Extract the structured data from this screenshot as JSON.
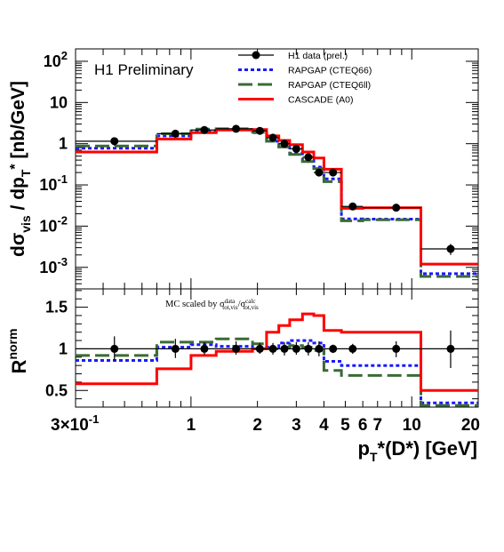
{
  "chart_data": [
    {
      "type": "line",
      "label": "H1 Preliminary",
      "ylabel": "dσ_vis / dp_T* [nb/GeV]",
      "xlabel": "",
      "xscale": "log",
      "yscale": "log",
      "xlim": [
        0.3,
        20
      ],
      "ylim": [
        0.0003,
        200
      ],
      "yticks": [
        {
          "value": 100,
          "mantissa": "10",
          "exp": "2"
        },
        {
          "value": 10,
          "mantissa": "10",
          "exp": ""
        },
        {
          "value": 1,
          "mantissa": "1",
          "exp": ""
        },
        {
          "value": 0.1,
          "mantissa": "10",
          "exp": "-1"
        },
        {
          "value": 0.01,
          "mantissa": "10",
          "exp": "-2"
        },
        {
          "value": 0.001,
          "mantissa": "10",
          "exp": "-3"
        }
      ],
      "bin_edges": [
        0.3,
        0.7,
        1.0,
        1.3,
        1.9,
        2.2,
        2.5,
        2.8,
        3.2,
        3.6,
        4.0,
        4.8,
        6.0,
        11.0,
        20.0
      ],
      "legend_position": "top-right",
      "series": [
        {
          "name": "H1 data (prel.)",
          "style": "points",
          "color": "#000000",
          "x": [
            0.45,
            0.85,
            1.15,
            1.6,
            2.05,
            2.35,
            2.65,
            3.0,
            3.4,
            3.8,
            4.4,
            5.4,
            8.5,
            15.0
          ],
          "values": [
            1.15,
            1.75,
            2.15,
            2.3,
            2.05,
            1.4,
            1.0,
            0.75,
            0.47,
            0.2,
            0.2,
            0.03,
            0.028,
            0.0028
          ],
          "err_low": [
            0.9,
            1.45,
            1.8,
            1.9,
            1.7,
            1.2,
            0.85,
            0.63,
            0.39,
            0.16,
            0.17,
            0.025,
            0.023,
            0.002
          ],
          "err_high": [
            1.4,
            2.05,
            2.5,
            2.7,
            2.4,
            1.6,
            1.15,
            0.87,
            0.56,
            0.24,
            0.23,
            0.035,
            0.033,
            0.0037
          ]
        },
        {
          "name": "RAPGAP (CTEQ66)",
          "style": "step-dotted",
          "color": "#1a1aff",
          "values": [
            0.78,
            1.55,
            2.05,
            2.2,
            1.85,
            1.15,
            0.85,
            0.58,
            0.4,
            0.27,
            0.14,
            0.015,
            0.0148,
            0.0007
          ]
        },
        {
          "name": "RAPGAP (CTEQ6ll)",
          "style": "step-dashed",
          "color": "#3a6b35",
          "values": [
            0.88,
            1.75,
            2.25,
            2.3,
            1.9,
            1.15,
            0.83,
            0.55,
            0.37,
            0.25,
            0.12,
            0.0135,
            0.0143,
            0.0006
          ]
        },
        {
          "name": "CASCADE (A0)",
          "style": "step-solid",
          "color": "#ff0000",
          "values": [
            0.63,
            1.3,
            1.85,
            2.15,
            2.2,
            1.55,
            1.2,
            0.95,
            0.63,
            0.45,
            0.24,
            0.027,
            0.028,
            0.0012
          ]
        }
      ]
    },
    {
      "type": "line",
      "ylabel": "R^norm",
      "xlabel": "p_T*(D*) [GeV]",
      "annotation": "MC scaled by σ^data_tot,vis / σ^calc_tot,vis",
      "xscale": "log",
      "xlim": [
        0.3,
        20
      ],
      "ylim": [
        0.3,
        1.72
      ],
      "yticks": [
        {
          "value": 0.5,
          "label": "0.5"
        },
        {
          "value": 1,
          "label": "1"
        },
        {
          "value": 1.5,
          "label": "1.5"
        }
      ],
      "xticks": [
        {
          "value": 0.3,
          "mantissa": "3×10",
          "exp": "-1"
        },
        {
          "value": 1,
          "mantissa": "1",
          "exp": ""
        },
        {
          "value": 2,
          "mantissa": "2",
          "exp": ""
        },
        {
          "value": 3,
          "mantissa": "3",
          "exp": ""
        },
        {
          "value": 4,
          "mantissa": "4",
          "exp": ""
        },
        {
          "value": 5,
          "mantissa": "5",
          "exp": ""
        },
        {
          "value": 6,
          "mantissa": "6",
          "exp": ""
        },
        {
          "value": 7,
          "mantissa": "7",
          "exp": ""
        },
        {
          "value": 10,
          "mantissa": "10",
          "exp": ""
        },
        {
          "value": 20,
          "mantissa": "20",
          "exp": ""
        }
      ],
      "reference_line": 1,
      "bin_edges": [
        0.3,
        0.7,
        1.0,
        1.3,
        1.9,
        2.2,
        2.5,
        2.8,
        3.2,
        3.6,
        4.0,
        4.8,
        6.0,
        11.0,
        20.0
      ],
      "series": [
        {
          "name": "H1 data (prel.)",
          "style": "points",
          "color": "#000000",
          "x": [
            0.45,
            0.85,
            1.15,
            1.6,
            2.05,
            2.35,
            2.65,
            3.0,
            3.4,
            3.8,
            4.4,
            5.4,
            8.5,
            15.0
          ],
          "values": [
            1.0,
            1.0,
            1.0,
            1.0,
            1.0,
            1.0,
            1.0,
            1.0,
            1.0,
            1.0,
            1.0,
            1.0,
            1.0,
            1.0
          ],
          "err_low": [
            0.86,
            0.89,
            0.93,
            0.93,
            0.94,
            0.93,
            0.92,
            0.93,
            0.92,
            0.91,
            0.95,
            0.94,
            0.9,
            0.77
          ],
          "err_high": [
            1.15,
            1.12,
            1.08,
            1.09,
            1.07,
            1.07,
            1.08,
            1.08,
            1.08,
            1.09,
            1.05,
            1.06,
            1.09,
            1.22
          ]
        },
        {
          "name": "RAPGAP (CTEQ66)",
          "style": "step-dotted",
          "color": "#1a1aff",
          "values": [
            0.86,
            1.02,
            1.05,
            1.03,
            1.0,
            1.02,
            1.07,
            1.1,
            1.1,
            1.07,
            0.85,
            0.8,
            0.8,
            0.35
          ]
        },
        {
          "name": "RAPGAP (CTEQ6ll)",
          "style": "step-dashed",
          "color": "#3a6b35",
          "values": [
            0.92,
            1.08,
            1.08,
            1.12,
            1.06,
            1.0,
            1.02,
            1.04,
            1.02,
            0.98,
            0.74,
            0.68,
            0.68,
            0.32
          ]
        },
        {
          "name": "CASCADE (A0)",
          "style": "step-solid",
          "color": "#ff0000",
          "values": [
            0.58,
            0.76,
            0.92,
            0.97,
            1.0,
            1.2,
            1.28,
            1.35,
            1.42,
            1.4,
            1.22,
            1.2,
            1.2,
            0.5
          ]
        }
      ]
    }
  ]
}
